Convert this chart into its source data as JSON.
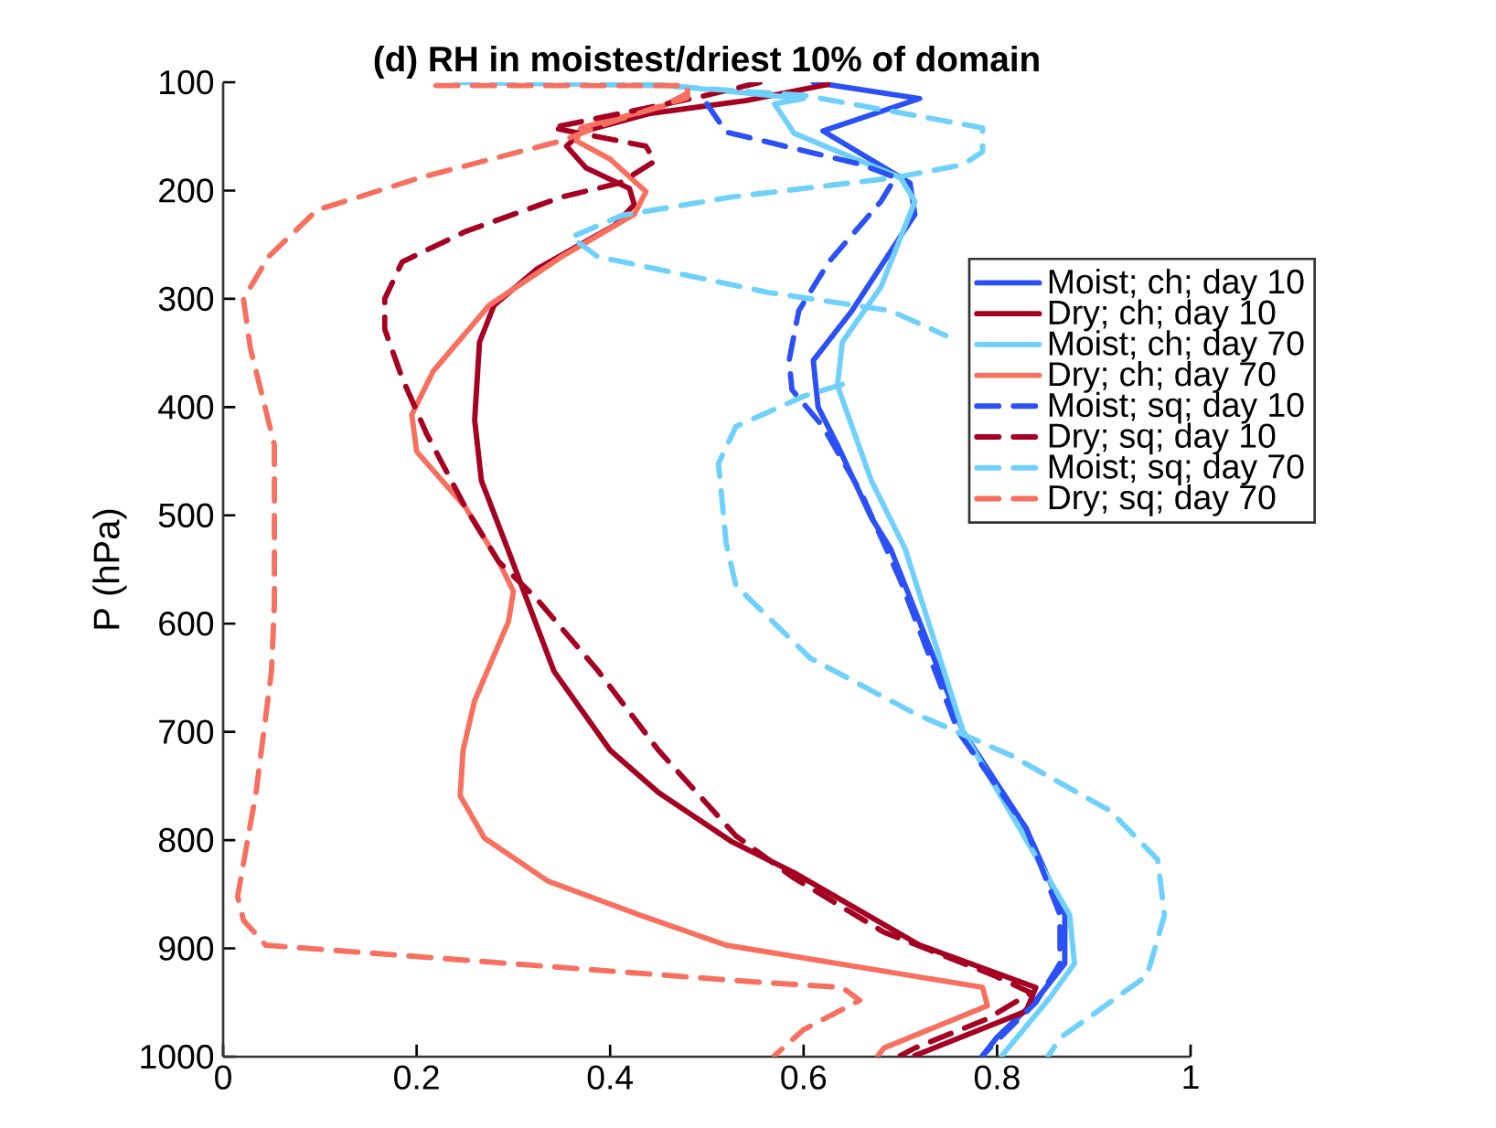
{
  "chart_data": {
    "type": "line",
    "title": "(d) RH in moistest/driest 10% of domain",
    "ylabel": "P (hPa)",
    "xlim": [
      0,
      1
    ],
    "ylim": [
      1000,
      100
    ],
    "xticks": [
      0,
      0.2,
      0.4,
      0.6,
      0.8,
      1
    ],
    "yticks": [
      100,
      200,
      300,
      400,
      500,
      600,
      700,
      800,
      900,
      1000
    ],
    "legend": "right",
    "grid": false,
    "series": [
      {
        "name": "Moist; ch; day 10",
        "color": "#2b50f5",
        "line_style": "solid",
        "x": [
          0.61,
          0.72,
          0.62,
          0.71,
          0.715,
          0.65,
          0.61,
          0.615,
          0.635,
          0.67,
          0.69,
          0.765,
          0.83,
          0.87,
          0.87,
          0.84,
          0.8,
          0.785
        ],
        "values": [
          100,
          115,
          145,
          193,
          222,
          311,
          357,
          400,
          435,
          502,
          531,
          700,
          789,
          869,
          914,
          948,
          982,
          999
        ]
      },
      {
        "name": "Dry; ch; day 10",
        "color": "#a50021",
        "line_style": "solid",
        "x": [
          0.625,
          0.54,
          0.44,
          0.37,
          0.355,
          0.375,
          0.42,
          0.425,
          0.405,
          0.325,
          0.28,
          0.265,
          0.26,
          0.267,
          0.295,
          0.342,
          0.4,
          0.45,
          0.525,
          0.59,
          0.72,
          0.84,
          0.83,
          0.715
        ],
        "values": [
          102,
          117,
          129,
          146,
          159,
          179,
          198,
          213,
          232,
          272,
          306,
          340,
          412,
          468,
          533,
          644,
          717,
          756,
          801,
          830,
          897,
          936,
          958,
          999
        ]
      },
      {
        "name": "Moist; ch; day 70",
        "color": "#6fd0fb",
        "line_style": "solid",
        "x": [
          0.425,
          0.6,
          0.57,
          0.59,
          0.7,
          0.715,
          0.68,
          0.64,
          0.635,
          0.67,
          0.705,
          0.765,
          0.82,
          0.875,
          0.88,
          0.855,
          0.805
        ],
        "values": [
          100,
          115,
          120,
          147,
          188,
          210,
          289,
          340,
          380,
          468,
          531,
          700,
          784,
          869,
          914,
          945,
          999
        ]
      },
      {
        "name": "Dry; ch; day 70",
        "color": "#f7705f",
        "line_style": "solid",
        "x": [
          0.48,
          0.455,
          0.37,
          0.365,
          0.4,
          0.437,
          0.425,
          0.35,
          0.275,
          0.217,
          0.195,
          0.2,
          0.25,
          0.285,
          0.3,
          0.295,
          0.26,
          0.248,
          0.245,
          0.27,
          0.336,
          0.43,
          0.52,
          0.785,
          0.79,
          0.683,
          0.677
        ],
        "values": [
          110,
          122,
          142,
          154,
          171,
          201,
          222,
          261,
          306,
          367,
          407,
          441,
          492,
          543,
          570,
          598,
          671,
          717,
          759,
          798,
          838,
          869,
          897,
          936,
          953,
          992,
          999
        ]
      },
      {
        "name": "Moist; sq; day 10",
        "color": "#2b50f5",
        "line_style": "dashed",
        "x": [
          0.5,
          0.52,
          0.66,
          0.695,
          0.68,
          0.626,
          0.595,
          0.585,
          0.588,
          0.62,
          0.66,
          0.7,
          0.76,
          0.83,
          0.865,
          0.865,
          0.84,
          0.8,
          0.785
        ],
        "values": [
          120,
          146,
          176,
          188,
          210,
          266,
          311,
          357,
          384,
          418,
          480,
          560,
          700,
          789,
          869,
          914,
          950,
          985,
          999
        ]
      },
      {
        "name": "Dry; sq; day 10",
        "color": "#a50021",
        "line_style": "dashed",
        "x": [
          0.555,
          0.5,
          0.34,
          0.437,
          0.446,
          0.41,
          0.35,
          0.25,
          0.185,
          0.167,
          0.167,
          0.185,
          0.21,
          0.25,
          0.285,
          0.323,
          0.387,
          0.45,
          0.53,
          0.59,
          0.683,
          0.797,
          0.835,
          0.79,
          0.715,
          0.7
        ],
        "values": [
          100,
          112,
          142,
          159,
          173,
          193,
          206,
          238,
          266,
          300,
          328,
          373,
          424,
          492,
          543,
          576,
          643,
          717,
          796,
          835,
          885,
          925,
          941,
          965,
          992,
          999
        ]
      },
      {
        "name": "Moist; sq; day 70",
        "color": "#6fd0fb",
        "line_style": "dashed",
        "x": [
          0.24,
          0.45,
          0.6,
          0.785,
          0.785,
          0.765,
          0.695,
          0.525,
          0.412,
          0.36,
          0.387,
          0.563,
          0.69,
          0.747,
          null,
          0.64,
          0.6,
          0.53,
          0.512,
          0.52,
          0.53,
          0.607,
          0.715,
          0.815,
          0.917,
          0.966,
          0.973,
          0.955,
          0.904,
          0.866,
          0.853
        ],
        "values": [
          100,
          103,
          112,
          142,
          164,
          176,
          188,
          206,
          223,
          243,
          261,
          294,
          311,
          334,
          null,
          379,
          390,
          418,
          452,
          526,
          565,
          632,
          683,
          722,
          773,
          818,
          869,
          925,
          958,
          982,
          999
        ]
      },
      {
        "name": "Dry; sq; day 70",
        "color": "#f7705f",
        "line_style": "dashed",
        "x": [
          0.22,
          0.48,
          0.48,
          0.4,
          0.35,
          0.204,
          0.097,
          0.047,
          0.021,
          0.028,
          0.053,
          0.053,
          0.05,
          0.034,
          0.015,
          0.021,
          0.044,
          0.55,
          0.64,
          0.658,
          0.6,
          0.57
        ],
        "values": [
          103,
          103,
          114,
          137,
          154,
          188,
          218,
          261,
          300,
          345,
          435,
          581,
          644,
          756,
          852,
          874,
          897,
          931,
          936,
          948,
          975,
          999
        ]
      }
    ]
  }
}
